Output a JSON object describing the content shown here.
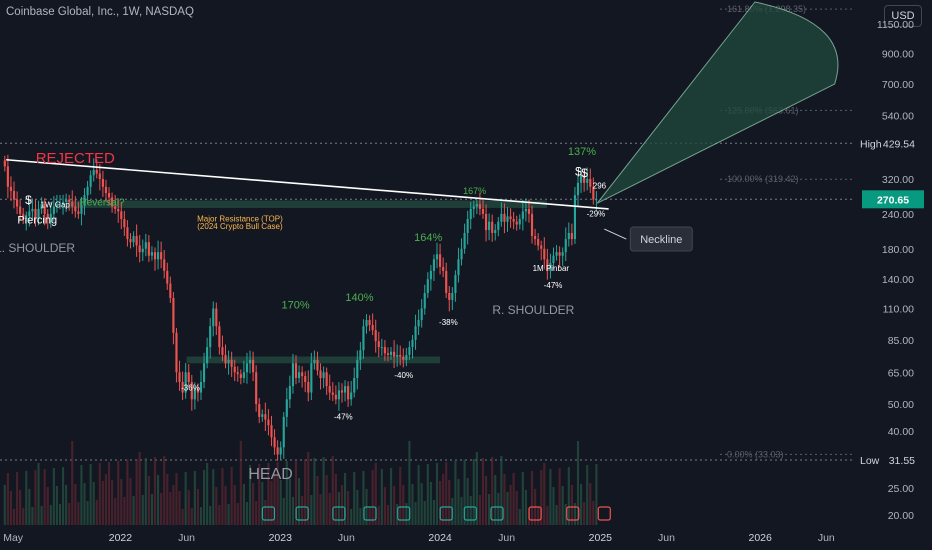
{
  "header": {
    "title": "Coinbase Global, Inc., 1W, NASDAQ",
    "currency": "USD"
  },
  "chart_data": {
    "type": "candlestick",
    "yscale": "log",
    "ylim": [
      18,
      1400
    ],
    "y_ticks": [
      20,
      25,
      30,
      40,
      50,
      65,
      85,
      110,
      140,
      180,
      240,
      320,
      420,
      540,
      700,
      900,
      1150
    ],
    "y_tick_labels": [
      "20.00",
      "25.00",
      "",
      "40.00",
      "50.00",
      "65.00",
      "85.00",
      "110.00",
      "140.00",
      "180.00",
      "240.00",
      "320.00",
      "",
      "540.00",
      "700.00",
      "900.00",
      "1150.00"
    ],
    "x_ticks": [
      "2021-05-01",
      "2022-01-01",
      "2022-06-01",
      "2023-01-01",
      "2023-06-01",
      "2024-01-01",
      "2024-06-01",
      "2025-01-01",
      "2025-06-01",
      "2026-01-01",
      "2026-06-01"
    ],
    "x_tick_labels": [
      "May",
      "2022",
      "Jun",
      "2023",
      "Jun",
      "2024",
      "Jun",
      "2025",
      "Jun",
      "2026",
      "Jun"
    ],
    "xlim": [
      "2021-04-01",
      "2026-08-01"
    ],
    "price_badges": [
      {
        "label": "High",
        "value": "429.54",
        "y": 429.54,
        "style": "dark"
      },
      {
        "label": "",
        "value": "270.65",
        "y": 270.65,
        "style": "green"
      },
      {
        "label": "Low",
        "value": "31.55",
        "y": 31.55,
        "style": "dark"
      }
    ],
    "dotted_levels": [
      429.54,
      270.65,
      31.55
    ],
    "fib_levels": [
      {
        "label": "161.80% (1,298.35)",
        "y": 1298.35
      },
      {
        "label": "125.00% (563.61)",
        "y": 563.61
      },
      {
        "label": "100.00% (319.42)",
        "y": 319.42
      },
      {
        "label": "0.00% (33.03)",
        "y": 33.03
      }
    ],
    "neckline": {
      "from": [
        "2021-04-15",
        375
      ],
      "to": [
        "2025-01-20",
        250
      ]
    },
    "resistance_zone": {
      "from": "2021-09-01",
      "to": "2024-09-01",
      "low": 252,
      "high": 268
    },
    "support_zone": {
      "from": "2022-06-01",
      "to": "2024-01-01",
      "low": 70,
      "high": 74
    },
    "projection": {
      "apex": [
        "2024-12-25",
        262
      ],
      "arc_start": [
        "2025-12-20",
        1450
      ],
      "arc_end": [
        "2026-06-20",
        700
      ]
    },
    "weekly_closes": [
      [
        "2021-04-12",
        355
      ],
      [
        "2021-04-19",
        300
      ],
      [
        "2021-04-26",
        290
      ],
      [
        "2021-05-03",
        270
      ],
      [
        "2021-05-10",
        255
      ],
      [
        "2021-05-17",
        240
      ],
      [
        "2021-05-24",
        230
      ],
      [
        "2021-05-31",
        235
      ],
      [
        "2021-06-07",
        245
      ],
      [
        "2021-06-14",
        250
      ],
      [
        "2021-06-21",
        230
      ],
      [
        "2021-06-28",
        250
      ],
      [
        "2021-07-05",
        260
      ],
      [
        "2021-07-12",
        240
      ],
      [
        "2021-07-19",
        230
      ],
      [
        "2021-07-26",
        240
      ],
      [
        "2021-08-02",
        255
      ],
      [
        "2021-08-09",
        260
      ],
      [
        "2021-08-16",
        262
      ],
      [
        "2021-08-23",
        265
      ],
      [
        "2021-08-30",
        270
      ],
      [
        "2021-09-06",
        265
      ],
      [
        "2021-09-13",
        255
      ],
      [
        "2021-09-20",
        245
      ],
      [
        "2021-09-27",
        240
      ],
      [
        "2021-10-04",
        258
      ],
      [
        "2021-10-11",
        280
      ],
      [
        "2021-10-18",
        300
      ],
      [
        "2021-10-25",
        330
      ],
      [
        "2021-11-01",
        345
      ],
      [
        "2021-11-08",
        335
      ],
      [
        "2021-11-15",
        320
      ],
      [
        "2021-11-22",
        300
      ],
      [
        "2021-11-29",
        285
      ],
      [
        "2021-12-06",
        275
      ],
      [
        "2021-12-13",
        255
      ],
      [
        "2021-12-20",
        250
      ],
      [
        "2021-12-27",
        245
      ],
      [
        "2022-01-03",
        230
      ],
      [
        "2022-01-10",
        215
      ],
      [
        "2022-01-17",
        195
      ],
      [
        "2022-01-24",
        190
      ],
      [
        "2022-01-31",
        200
      ],
      [
        "2022-02-07",
        185
      ],
      [
        "2022-02-14",
        175
      ],
      [
        "2022-02-21",
        180
      ],
      [
        "2022-02-28",
        190
      ],
      [
        "2022-03-07",
        170
      ],
      [
        "2022-03-14",
        175
      ],
      [
        "2022-03-21",
        165
      ],
      [
        "2022-03-28",
        175
      ],
      [
        "2022-04-04",
        165
      ],
      [
        "2022-04-11",
        150
      ],
      [
        "2022-04-18",
        135
      ],
      [
        "2022-04-25",
        120
      ],
      [
        "2022-05-02",
        90
      ],
      [
        "2022-05-09",
        65
      ],
      [
        "2022-05-16",
        60
      ],
      [
        "2022-05-23",
        55
      ],
      [
        "2022-05-30",
        65
      ],
      [
        "2022-06-06",
        60
      ],
      [
        "2022-06-13",
        52
      ],
      [
        "2022-06-20",
        57
      ],
      [
        "2022-06-27",
        55
      ],
      [
        "2022-07-04",
        60
      ],
      [
        "2022-07-11",
        70
      ],
      [
        "2022-07-18",
        80
      ],
      [
        "2022-07-25",
        95
      ],
      [
        "2022-08-01",
        110
      ],
      [
        "2022-08-08",
        95
      ],
      [
        "2022-08-15",
        80
      ],
      [
        "2022-08-22",
        75
      ],
      [
        "2022-08-29",
        70
      ],
      [
        "2022-09-05",
        72
      ],
      [
        "2022-09-12",
        68
      ],
      [
        "2022-09-19",
        65
      ],
      [
        "2022-09-26",
        64
      ],
      [
        "2022-10-03",
        62
      ],
      [
        "2022-10-10",
        65
      ],
      [
        "2022-10-17",
        70
      ],
      [
        "2022-10-24",
        72
      ],
      [
        "2022-10-31",
        65
      ],
      [
        "2022-11-07",
        50
      ],
      [
        "2022-11-14",
        45
      ],
      [
        "2022-11-21",
        46
      ],
      [
        "2022-11-28",
        44
      ],
      [
        "2022-12-05",
        42
      ],
      [
        "2022-12-12",
        38
      ],
      [
        "2022-12-19",
        35
      ],
      [
        "2022-12-26",
        33
      ],
      [
        "2023-01-02",
        35
      ],
      [
        "2023-01-09",
        45
      ],
      [
        "2023-01-16",
        52
      ],
      [
        "2023-01-23",
        58
      ],
      [
        "2023-01-30",
        70
      ],
      [
        "2023-02-06",
        62
      ],
      [
        "2023-02-13",
        65
      ],
      [
        "2023-02-20",
        63
      ],
      [
        "2023-02-27",
        60
      ],
      [
        "2023-03-06",
        55
      ],
      [
        "2023-03-13",
        70
      ],
      [
        "2023-03-20",
        72
      ],
      [
        "2023-03-27",
        66
      ],
      [
        "2023-04-03",
        62
      ],
      [
        "2023-04-10",
        65
      ],
      [
        "2023-04-17",
        58
      ],
      [
        "2023-04-24",
        55
      ],
      [
        "2023-05-01",
        54
      ],
      [
        "2023-05-08",
        52
      ],
      [
        "2023-05-15",
        56
      ],
      [
        "2023-05-22",
        55
      ],
      [
        "2023-05-29",
        58
      ],
      [
        "2023-06-05",
        52
      ],
      [
        "2023-06-12",
        55
      ],
      [
        "2023-06-19",
        62
      ],
      [
        "2023-06-26",
        72
      ],
      [
        "2023-07-03",
        78
      ],
      [
        "2023-07-10",
        95
      ],
      [
        "2023-07-17",
        100
      ],
      [
        "2023-07-24",
        96
      ],
      [
        "2023-07-31",
        92
      ],
      [
        "2023-08-07",
        84
      ],
      [
        "2023-08-14",
        80
      ],
      [
        "2023-08-21",
        80
      ],
      [
        "2023-08-28",
        76
      ],
      [
        "2023-09-04",
        75
      ],
      [
        "2023-09-11",
        77
      ],
      [
        "2023-09-18",
        74
      ],
      [
        "2023-09-25",
        75
      ],
      [
        "2023-10-02",
        74
      ],
      [
        "2023-10-09",
        72
      ],
      [
        "2023-10-16",
        75
      ],
      [
        "2023-10-23",
        80
      ],
      [
        "2023-10-30",
        85
      ],
      [
        "2023-11-06",
        95
      ],
      [
        "2023-11-13",
        100
      ],
      [
        "2023-11-20",
        110
      ],
      [
        "2023-11-27",
        125
      ],
      [
        "2023-12-04",
        140
      ],
      [
        "2023-12-11",
        150
      ],
      [
        "2023-12-18",
        165
      ],
      [
        "2023-12-25",
        172
      ],
      [
        "2024-01-01",
        155
      ],
      [
        "2024-01-08",
        150
      ],
      [
        "2024-01-15",
        125
      ],
      [
        "2024-01-22",
        118
      ],
      [
        "2024-01-29",
        125
      ],
      [
        "2024-02-05",
        145
      ],
      [
        "2024-02-12",
        165
      ],
      [
        "2024-02-19",
        180
      ],
      [
        "2024-02-26",
        205
      ],
      [
        "2024-03-04",
        230
      ],
      [
        "2024-03-11",
        250
      ],
      [
        "2024-03-18",
        255
      ],
      [
        "2024-03-25",
        260
      ],
      [
        "2024-04-01",
        250
      ],
      [
        "2024-04-08",
        240
      ],
      [
        "2024-04-15",
        210
      ],
      [
        "2024-04-22",
        225
      ],
      [
        "2024-04-29",
        205
      ],
      [
        "2024-05-06",
        210
      ],
      [
        "2024-05-13",
        225
      ],
      [
        "2024-05-20",
        240
      ],
      [
        "2024-05-27",
        225
      ],
      [
        "2024-06-03",
        235
      ],
      [
        "2024-06-10",
        230
      ],
      [
        "2024-06-17",
        225
      ],
      [
        "2024-06-24",
        220
      ],
      [
        "2024-07-01",
        230
      ],
      [
        "2024-07-08",
        245
      ],
      [
        "2024-07-15",
        250
      ],
      [
        "2024-07-22",
        240
      ],
      [
        "2024-07-29",
        200
      ],
      [
        "2024-08-05",
        195
      ],
      [
        "2024-08-12",
        185
      ],
      [
        "2024-08-19",
        180
      ],
      [
        "2024-08-26",
        165
      ],
      [
        "2024-09-02",
        150
      ],
      [
        "2024-09-09",
        160
      ],
      [
        "2024-09-16",
        170
      ],
      [
        "2024-09-23",
        175
      ],
      [
        "2024-09-30",
        170
      ],
      [
        "2024-10-07",
        175
      ],
      [
        "2024-10-14",
        195
      ],
      [
        "2024-10-21",
        205
      ],
      [
        "2024-10-28",
        195
      ],
      [
        "2024-11-04",
        280
      ],
      [
        "2024-11-11",
        310
      ],
      [
        "2024-11-18",
        330
      ],
      [
        "2024-11-25",
        310
      ],
      [
        "2024-12-02",
        320
      ],
      [
        "2024-12-09",
        300
      ],
      [
        "2024-12-16",
        270
      ],
      [
        "2024-12-23",
        270.65
      ]
    ],
    "annotations": [
      {
        "text": "REJECTED",
        "x": "2021-09-20",
        "y": 365,
        "color": "#f23645",
        "size": 15,
        "weight": "normal"
      },
      {
        "text": "L. SHOULDER",
        "x": "2021-06-20",
        "y": 175,
        "color": "#9598a1",
        "size": 12
      },
      {
        "text": "HEAD",
        "x": "2022-12-10",
        "y": 27,
        "color": "#9598a1",
        "size": 16
      },
      {
        "text": "R. SHOULDER",
        "x": "2024-08-01",
        "y": 105,
        "color": "#9598a1",
        "size": 12
      },
      {
        "text": "Piercing",
        "x": "2021-06-25",
        "y": 222,
        "color": "#ffffff",
        "size": 11
      },
      {
        "text": "1W Gap",
        "x": "2021-08-05",
        "y": 253,
        "color": "#ffffff",
        "size": 8
      },
      {
        "text": "Reversal?",
        "x": "2021-11-20",
        "y": 257,
        "color": "#4caf50",
        "size": 10
      },
      {
        "text": "Major Resistance (TOP)",
        "x": "2022-10-01",
        "y": 225,
        "color": "#ffb74d",
        "size": 8
      },
      {
        "text": "(2024 Crypto Bull Case)",
        "x": "2022-10-01",
        "y": 212,
        "color": "#ffb74d",
        "size": 8
      },
      {
        "text": "170%",
        "x": "2023-02-05",
        "y": 110,
        "color": "#4caf50",
        "size": 11
      },
      {
        "text": "140%",
        "x": "2023-07-01",
        "y": 117,
        "color": "#4caf50",
        "size": 11
      },
      {
        "text": "164%",
        "x": "2023-12-05",
        "y": 192,
        "color": "#4caf50",
        "size": 11
      },
      {
        "text": "-47%",
        "x": "2023-05-25",
        "y": 44,
        "color": "#ffffff",
        "size": 8
      },
      {
        "text": "-40%",
        "x": "2023-10-10",
        "y": 62,
        "color": "#ffffff",
        "size": 8
      },
      {
        "text": "-38%",
        "x": "2024-01-20",
        "y": 96,
        "color": "#ffffff",
        "size": 8
      },
      {
        "text": "-36%",
        "x": "2022-06-10",
        "y": 56,
        "color": "#ffffff",
        "size": 8
      },
      {
        "text": "-47%",
        "x": "2024-09-15",
        "y": 130,
        "color": "#ffffff",
        "size": 8
      },
      {
        "text": "1M Pinbar",
        "x": "2024-09-10",
        "y": 150,
        "color": "#ffffff",
        "size": 8
      },
      {
        "text": "137%",
        "x": "2024-11-20",
        "y": 390,
        "color": "#4caf50",
        "size": 11
      },
      {
        "text": "296",
        "x": "2024-12-30",
        "y": 296,
        "color": "#ffffff",
        "size": 8
      },
      {
        "text": "-29%",
        "x": "2024-12-22",
        "y": 235,
        "color": "#ffffff",
        "size": 8
      },
      {
        "text": "167%",
        "x": "2024-03-20",
        "y": 283,
        "color": "#4caf50",
        "size": 9
      },
      {
        "text": "$",
        "x": "2021-06-05",
        "y": 260,
        "color": "#ffffff",
        "size": 12
      },
      {
        "text": "$",
        "x": "2024-11-12",
        "y": 330,
        "color": "#ffffff",
        "size": 12
      },
      {
        "text": "$",
        "x": "2024-11-26",
        "y": 325,
        "color": "#ffffff",
        "size": 12
      }
    ],
    "callout": {
      "text": "Neckline",
      "x": "2025-03-15",
      "y": 195
    },
    "volume": {
      "max": 100
    }
  }
}
